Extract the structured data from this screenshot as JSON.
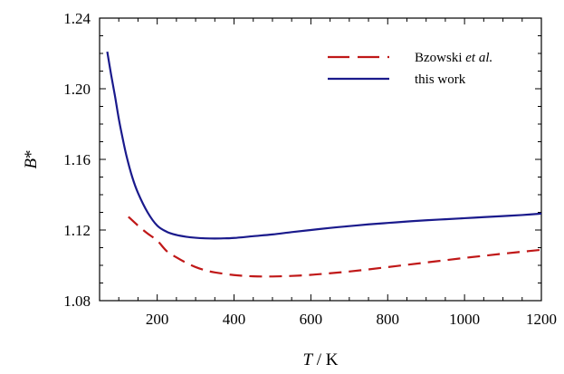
{
  "chart_data": {
    "type": "line",
    "title": "",
    "xlabel": {
      "var": "T",
      "unit": " / K"
    },
    "ylabel": {
      "var": "B",
      "sup": "*"
    },
    "xlim": [
      50,
      1200
    ],
    "ylim": [
      1.08,
      1.24
    ],
    "xticks": [
      200,
      400,
      600,
      800,
      1000,
      1200
    ],
    "yticks": [
      1.08,
      1.12,
      1.16,
      1.2,
      1.24
    ],
    "ytick_labels": [
      "1.08",
      "1.12",
      "1.16",
      "1.20",
      "1.24"
    ],
    "xminor_step": 50,
    "yminor_step": 0.01,
    "grid": false,
    "legend_position": "top-right",
    "series": [
      {
        "name_prefix": "Bzowski ",
        "name_italic": "et al.",
        "color": "#c01818",
        "style": "dashed",
        "x": [
          125,
          150,
          175,
          200,
          225,
          250,
          275,
          300,
          325,
          350,
          400,
          450,
          500,
          550,
          600,
          650,
          700,
          750,
          800,
          850,
          900,
          950,
          1000,
          1050,
          1100,
          1150,
          1200
        ],
        "y": [
          1.1275,
          1.1225,
          1.118,
          1.114,
          1.108,
          1.1045,
          1.1015,
          1.099,
          1.0972,
          1.096,
          1.0945,
          1.0938,
          1.0937,
          1.094,
          1.0946,
          1.0955,
          1.0965,
          1.0977,
          1.099,
          1.1003,
          1.1016,
          1.1029,
          1.1042,
          1.1054,
          1.1066,
          1.1077,
          1.1088
        ]
      },
      {
        "name": "this work",
        "color": "#1a1a8c",
        "style": "solid",
        "x": [
          70,
          80,
          90,
          100,
          110,
          120,
          135,
          150,
          175,
          200,
          225,
          250,
          275,
          300,
          325,
          350,
          375,
          400,
          450,
          500,
          550,
          600,
          650,
          700,
          750,
          800,
          850,
          900,
          950,
          1000,
          1050,
          1100,
          1150,
          1200
        ],
        "y": [
          1.221,
          1.208,
          1.196,
          1.183,
          1.172,
          1.162,
          1.15,
          1.141,
          1.13,
          1.1225,
          1.119,
          1.1172,
          1.1162,
          1.1156,
          1.1153,
          1.1152,
          1.1153,
          1.1155,
          1.1165,
          1.1175,
          1.1188,
          1.12,
          1.1212,
          1.1222,
          1.1232,
          1.124,
          1.1248,
          1.1255,
          1.1261,
          1.1267,
          1.1273,
          1.1279,
          1.1285,
          1.1293
        ]
      }
    ]
  }
}
